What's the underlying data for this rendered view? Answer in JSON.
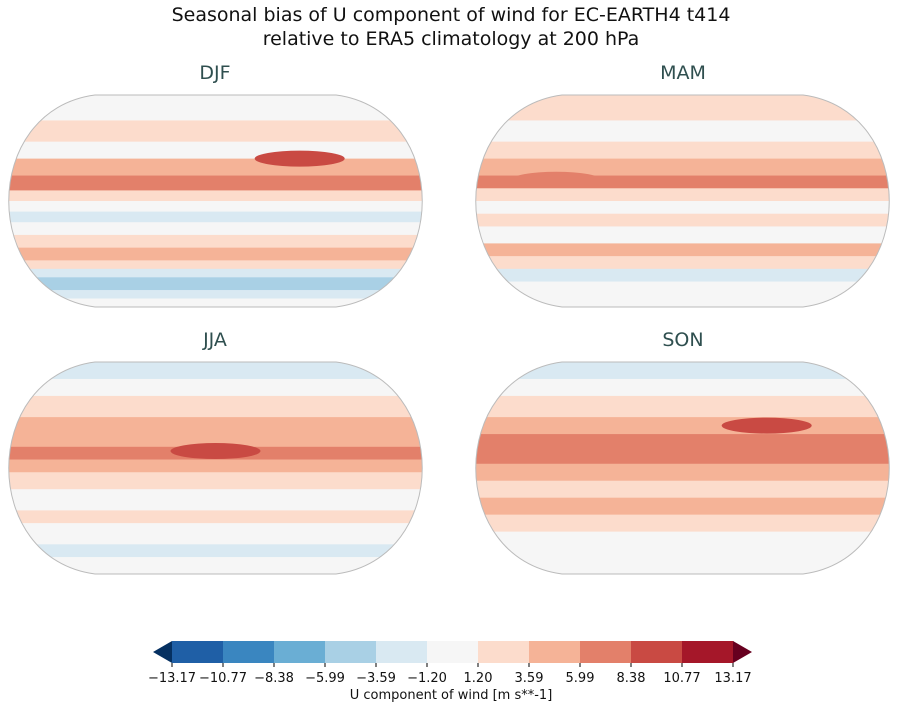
{
  "title_line1": "Seasonal bias of U component of wind for EC-EARTH4 t414",
  "title_line2": "relative to ERA5 climatology at 200 hPa",
  "panels": [
    {
      "label": "DJF"
    },
    {
      "label": "MAM"
    },
    {
      "label": "JJA"
    },
    {
      "label": "SON"
    }
  ],
  "colorbar": {
    "label": "U component of wind [m s**-1]",
    "ticks": [
      "−13.17",
      "−10.77",
      "−8.38",
      "−5.99",
      "−3.59",
      "−1.20",
      "1.20",
      "3.59",
      "5.99",
      "8.38",
      "10.77",
      "13.17"
    ],
    "colors": [
      "#1f5fa6",
      "#3a86c0",
      "#6aaed4",
      "#a9d0e5",
      "#d9e9f2",
      "#f6f6f6",
      "#fcdccc",
      "#f5b397",
      "#e3806a",
      "#c94a43",
      "#a51729"
    ],
    "under_color": "#053061",
    "over_color": "#67001f",
    "extend": "both"
  }
}
